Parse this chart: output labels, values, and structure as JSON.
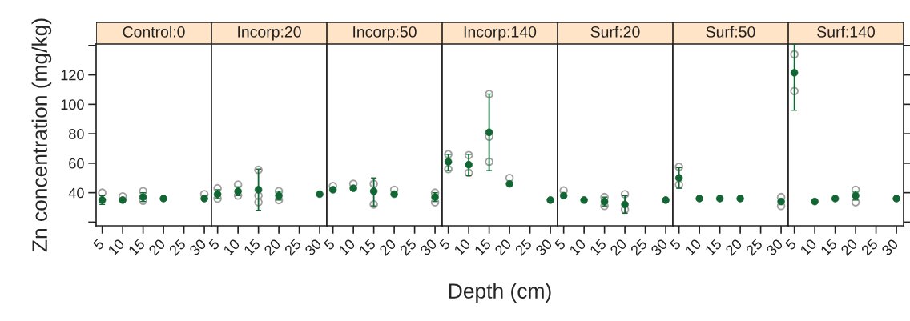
{
  "chart_data": [
    {
      "type": "scatter",
      "title": "Control:0",
      "ylabel": "Zn concentration (mg/kg)",
      "xlim": [
        3.5,
        31.75
      ],
      "xticks": [
        5,
        10,
        15,
        20,
        25,
        30
      ],
      "ylim": [
        17.5,
        141
      ],
      "yticks": [
        {
          "value": 20,
          "label": null
        },
        40,
        60,
        80,
        100,
        120,
        {
          "value": 140,
          "label": null
        }
      ],
      "marker": "circle",
      "series": [
        {
          "color": "#a0a0a0",
          "x": [
            5,
            10,
            15,
            15,
            30
          ],
          "values": [
            40,
            37.5,
            41,
            34.5,
            39
          ]
        },
        {
          "color": "#116633",
          "x": [
            5,
            10,
            15,
            20,
            30
          ],
          "values": [
            35,
            35,
            37,
            36,
            36
          ],
          "errors": [
            [
              32,
              38
            ],
            null,
            [
              34,
              40
            ],
            null,
            null
          ]
        }
      ]
    },
    {
      "type": "scatter",
      "title": "Incorp:20",
      "tick_labels": "x",
      "xlim": [
        3.5,
        31.75
      ],
      "xticks": [
        5,
        10,
        15,
        20,
        25,
        30
      ],
      "ylim": [
        17.5,
        141
      ],
      "marker": "circle",
      "series": [
        {
          "color": "#a0a0a0",
          "x": [
            5,
            5,
            10,
            10,
            15,
            15,
            15,
            20,
            20
          ],
          "values": [
            43,
            36,
            45.5,
            38,
            55.5,
            38,
            33.5,
            41,
            35
          ]
        },
        {
          "color": "#116633",
          "x": [
            5,
            10,
            15,
            20,
            30
          ],
          "values": [
            39,
            41,
            42,
            38,
            39
          ],
          "errors": [
            [
              36,
              42
            ],
            [
              38,
              44
            ],
            [
              28,
              56
            ],
            [
              35,
              41
            ],
            null
          ]
        }
      ]
    },
    {
      "type": "scatter",
      "title": "Incorp:50",
      "tick_labels": "x",
      "xlim": [
        3.5,
        31.75
      ],
      "xticks": [
        5,
        10,
        15,
        20,
        25,
        30
      ],
      "ylim": [
        17.5,
        141
      ],
      "marker": "circle",
      "series": [
        {
          "color": "#a0a0a0",
          "x": [
            5,
            10,
            15,
            15,
            20,
            30,
            30
          ],
          "values": [
            44.5,
            46,
            46,
            32,
            42,
            40,
            33.5
          ]
        },
        {
          "color": "#116633",
          "x": [
            5,
            10,
            15,
            20,
            30
          ],
          "values": [
            42,
            43,
            41,
            39,
            37
          ],
          "errors": [
            null,
            null,
            [
              31,
              50
            ],
            null,
            [
              34,
              40
            ]
          ]
        }
      ]
    },
    {
      "type": "scatter",
      "title": "Incorp:140",
      "xlabel": "Depth (cm)",
      "tick_labels": "x",
      "xlim": [
        3.5,
        31.75
      ],
      "xticks": [
        5,
        10,
        15,
        20,
        25,
        30
      ],
      "ylim": [
        17.5,
        141
      ],
      "marker": "circle",
      "series": [
        {
          "color": "#a0a0a0",
          "x": [
            5,
            5,
            10,
            10,
            15,
            15,
            15,
            20
          ],
          "values": [
            66,
            56,
            65.5,
            53.5,
            107,
            78,
            61,
            50
          ]
        },
        {
          "color": "#116633",
          "x": [
            5,
            10,
            15,
            20,
            30
          ],
          "values": [
            61,
            59,
            81,
            46,
            35
          ],
          "errors": [
            [
              55,
              66
            ],
            [
              51.5,
              66
            ],
            [
              55,
              107
            ],
            null,
            null
          ]
        }
      ]
    },
    {
      "type": "scatter",
      "title": "Surf:20",
      "tick_labels": "x",
      "xlim": [
        3.5,
        31.75
      ],
      "xticks": [
        5,
        10,
        15,
        20,
        25,
        30
      ],
      "ylim": [
        17.5,
        141
      ],
      "marker": "circle",
      "series": [
        {
          "color": "#a0a0a0",
          "x": [
            5,
            15,
            15,
            20,
            20
          ],
          "values": [
            41.5,
            37,
            31,
            39,
            28.5
          ]
        },
        {
          "color": "#116633",
          "x": [
            5,
            10,
            15,
            20,
            30
          ],
          "values": [
            38,
            35,
            34,
            32,
            35
          ],
          "errors": [
            null,
            null,
            [
              31,
              37
            ],
            [
              26,
              38
            ],
            null
          ]
        }
      ]
    },
    {
      "type": "scatter",
      "title": "Surf:50",
      "tick_labels": "x",
      "xlim": [
        3.5,
        31.75
      ],
      "xticks": [
        5,
        10,
        15,
        20,
        25,
        30
      ],
      "ylim": [
        17.5,
        141
      ],
      "marker": "circle",
      "series": [
        {
          "color": "#a0a0a0",
          "x": [
            5,
            5,
            30,
            30
          ],
          "values": [
            57.5,
            45.5,
            37,
            31
          ]
        },
        {
          "color": "#116633",
          "x": [
            5,
            10,
            15,
            20,
            30
          ],
          "values": [
            50,
            36,
            36,
            36,
            34
          ],
          "errors": [
            [
              43,
              57
            ],
            null,
            null,
            null,
            null
          ]
        }
      ]
    },
    {
      "type": "scatter",
      "title": "Surf:140",
      "tick_labels": "x",
      "xlim": [
        3.5,
        31.75
      ],
      "xticks": [
        5,
        10,
        15,
        20,
        25,
        30
      ],
      "ylim": [
        17.5,
        141
      ],
      "yticks": [
        {
          "value": 20,
          "label": null
        },
        {
          "value": 40,
          "label": null
        },
        {
          "value": 60,
          "label": null
        },
        {
          "value": 80,
          "label": null
        },
        {
          "value": 100,
          "label": null
        },
        {
          "value": 120,
          "label": null
        },
        {
          "value": 140,
          "label": null
        }
      ],
      "marker": "circle",
      "series": [
        {
          "color": "#a0a0a0",
          "x": [
            5,
            5,
            20,
            20
          ],
          "values": [
            134,
            109,
            42,
            33.5
          ]
        },
        {
          "color": "#116633",
          "x": [
            5,
            10,
            15,
            20,
            30
          ],
          "values": [
            121.5,
            34,
            36,
            38,
            36
          ],
          "errors": [
            [
              96,
              141
            ],
            null,
            null,
            [
              35,
              41
            ],
            null
          ]
        }
      ]
    }
  ]
}
